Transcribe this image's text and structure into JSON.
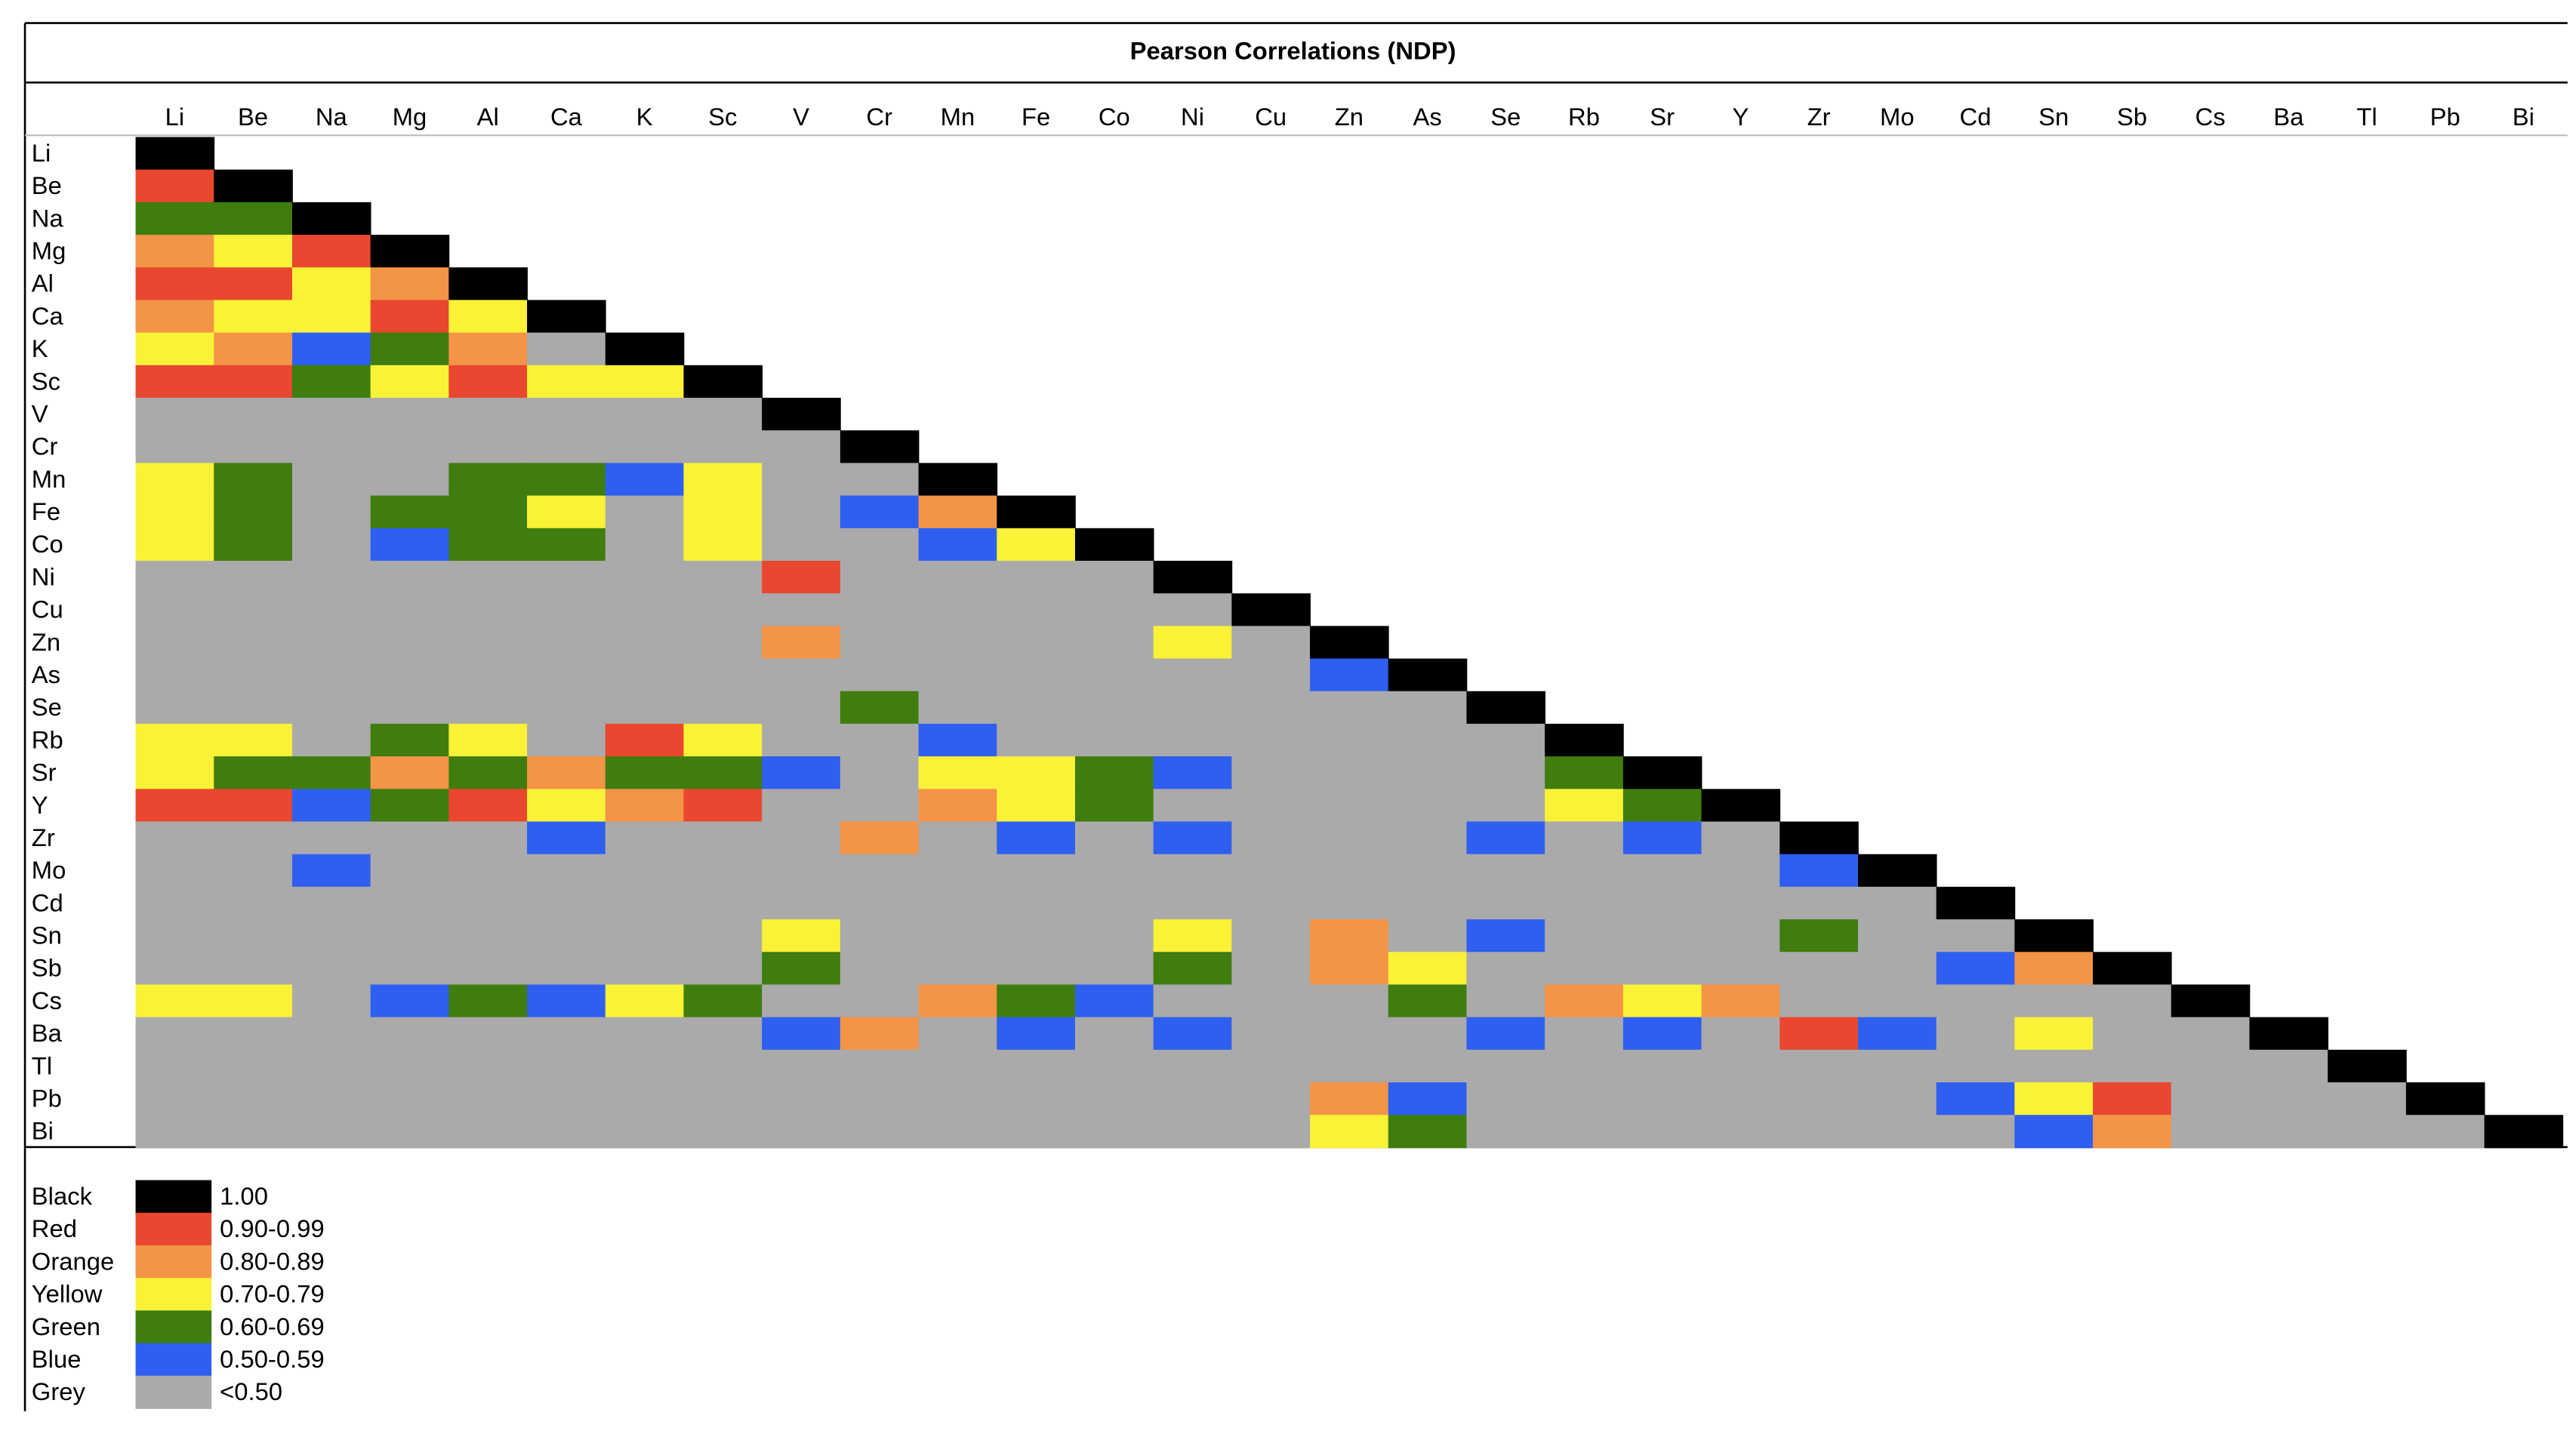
{
  "title": "Pearson Correlations (NDP)",
  "elements": [
    "Li",
    "Be",
    "Na",
    "Mg",
    "Al",
    "Ca",
    "K",
    "Sc",
    "V",
    "Cr",
    "Mn",
    "Fe",
    "Co",
    "Ni",
    "Cu",
    "Zn",
    "As",
    "Se",
    "Rb",
    "Sr",
    "Y",
    "Zr",
    "Mo",
    "Cd",
    "Sn",
    "Sb",
    "Cs",
    "Ba",
    "Tl",
    "Pb",
    "Bi"
  ],
  "matrix": [
    [
      "Black"
    ],
    [
      "Red",
      "Black"
    ],
    [
      "Green",
      "Green",
      "Black"
    ],
    [
      "Orange",
      "Yellow",
      "Red",
      "Black"
    ],
    [
      "Red",
      "Red",
      "Yellow",
      "Orange",
      "Black"
    ],
    [
      "Orange",
      "Yellow",
      "Yellow",
      "Red",
      "Yellow",
      "Black"
    ],
    [
      "Yellow",
      "Orange",
      "Blue",
      "Green",
      "Orange",
      "Grey",
      "Black"
    ],
    [
      "Red",
      "Red",
      "Green",
      "Yellow",
      "Red",
      "Yellow",
      "Yellow",
      "Black"
    ],
    [
      "Grey",
      "Grey",
      "Grey",
      "Grey",
      "Grey",
      "Grey",
      "Grey",
      "Grey",
      "Black"
    ],
    [
      "Grey",
      "Grey",
      "Grey",
      "Grey",
      "Grey",
      "Grey",
      "Grey",
      "Grey",
      "Grey",
      "Black"
    ],
    [
      "Yellow",
      "Green",
      "Grey",
      "Grey",
      "Green",
      "Green",
      "Blue",
      "Yellow",
      "Grey",
      "Grey",
      "Black"
    ],
    [
      "Yellow",
      "Green",
      "Grey",
      "Green",
      "Green",
      "Yellow",
      "Grey",
      "Yellow",
      "Grey",
      "Blue",
      "Orange",
      "Black"
    ],
    [
      "Yellow",
      "Green",
      "Grey",
      "Blue",
      "Green",
      "Green",
      "Grey",
      "Yellow",
      "Grey",
      "Grey",
      "Blue",
      "Yellow",
      "Black"
    ],
    [
      "Grey",
      "Grey",
      "Grey",
      "Grey",
      "Grey",
      "Grey",
      "Grey",
      "Grey",
      "Red",
      "Grey",
      "Grey",
      "Grey",
      "Grey",
      "Black"
    ],
    [
      "Grey",
      "Grey",
      "Grey",
      "Grey",
      "Grey",
      "Grey",
      "Grey",
      "Grey",
      "Grey",
      "Grey",
      "Grey",
      "Grey",
      "Grey",
      "Grey",
      "Black"
    ],
    [
      "Grey",
      "Grey",
      "Grey",
      "Grey",
      "Grey",
      "Grey",
      "Grey",
      "Grey",
      "Orange",
      "Grey",
      "Grey",
      "Grey",
      "Grey",
      "Yellow",
      "Grey",
      "Black"
    ],
    [
      "Grey",
      "Grey",
      "Grey",
      "Grey",
      "Grey",
      "Grey",
      "Grey",
      "Grey",
      "Grey",
      "Grey",
      "Grey",
      "Grey",
      "Grey",
      "Grey",
      "Grey",
      "Blue",
      "Black"
    ],
    [
      "Grey",
      "Grey",
      "Grey",
      "Grey",
      "Grey",
      "Grey",
      "Grey",
      "Grey",
      "Grey",
      "Green",
      "Grey",
      "Grey",
      "Grey",
      "Grey",
      "Grey",
      "Grey",
      "Grey",
      "Black"
    ],
    [
      "Yellow",
      "Yellow",
      "Grey",
      "Green",
      "Yellow",
      "Grey",
      "Red",
      "Yellow",
      "Grey",
      "Grey",
      "Blue",
      "Grey",
      "Grey",
      "Grey",
      "Grey",
      "Grey",
      "Grey",
      "Grey",
      "Black"
    ],
    [
      "Yellow",
      "Green",
      "Green",
      "Orange",
      "Green",
      "Orange",
      "Green",
      "Green",
      "Blue",
      "Grey",
      "Yellow",
      "Yellow",
      "Green",
      "Blue",
      "Grey",
      "Grey",
      "Grey",
      "Grey",
      "Green",
      "Black"
    ],
    [
      "Red",
      "Red",
      "Blue",
      "Green",
      "Red",
      "Yellow",
      "Orange",
      "Red",
      "Grey",
      "Grey",
      "Orange",
      "Yellow",
      "Green",
      "Grey",
      "Grey",
      "Grey",
      "Grey",
      "Grey",
      "Yellow",
      "Green",
      "Black"
    ],
    [
      "Grey",
      "Grey",
      "Grey",
      "Grey",
      "Grey",
      "Blue",
      "Grey",
      "Grey",
      "Grey",
      "Orange",
      "Grey",
      "Blue",
      "Grey",
      "Blue",
      "Grey",
      "Grey",
      "Grey",
      "Blue",
      "Grey",
      "Blue",
      "Grey",
      "Black"
    ],
    [
      "Grey",
      "Grey",
      "Blue",
      "Grey",
      "Grey",
      "Grey",
      "Grey",
      "Grey",
      "Grey",
      "Grey",
      "Grey",
      "Grey",
      "Grey",
      "Grey",
      "Grey",
      "Grey",
      "Grey",
      "Grey",
      "Grey",
      "Grey",
      "Grey",
      "Blue",
      "Black"
    ],
    [
      "Grey",
      "Grey",
      "Grey",
      "Grey",
      "Grey",
      "Grey",
      "Grey",
      "Grey",
      "Grey",
      "Grey",
      "Grey",
      "Grey",
      "Grey",
      "Grey",
      "Grey",
      "Grey",
      "Grey",
      "Grey",
      "Grey",
      "Grey",
      "Grey",
      "Grey",
      "Grey",
      "Black"
    ],
    [
      "Grey",
      "Grey",
      "Grey",
      "Grey",
      "Grey",
      "Grey",
      "Grey",
      "Grey",
      "Yellow",
      "Grey",
      "Grey",
      "Grey",
      "Grey",
      "Yellow",
      "Grey",
      "Orange",
      "Grey",
      "Blue",
      "Grey",
      "Grey",
      "Grey",
      "Green",
      "Grey",
      "Grey",
      "Black"
    ],
    [
      "Grey",
      "Grey",
      "Grey",
      "Grey",
      "Grey",
      "Grey",
      "Grey",
      "Grey",
      "Green",
      "Grey",
      "Grey",
      "Grey",
      "Grey",
      "Green",
      "Grey",
      "Orange",
      "Yellow",
      "Grey",
      "Grey",
      "Grey",
      "Grey",
      "Grey",
      "Grey",
      "Blue",
      "Orange",
      "Black"
    ],
    [
      "Yellow",
      "Yellow",
      "Grey",
      "Blue",
      "Green",
      "Blue",
      "Yellow",
      "Green",
      "Grey",
      "Grey",
      "Orange",
      "Green",
      "Blue",
      "Grey",
      "Grey",
      "Grey",
      "Green",
      "Grey",
      "Orange",
      "Yellow",
      "Orange",
      "Grey",
      "Grey",
      "Grey",
      "Grey",
      "Grey",
      "Black"
    ],
    [
      "Grey",
      "Grey",
      "Grey",
      "Grey",
      "Grey",
      "Grey",
      "Grey",
      "Grey",
      "Blue",
      "Orange",
      "Grey",
      "Blue",
      "Grey",
      "Blue",
      "Grey",
      "Grey",
      "Grey",
      "Blue",
      "Grey",
      "Blue",
      "Grey",
      "Red",
      "Blue",
      "Grey",
      "Yellow",
      "Grey",
      "Grey",
      "Black"
    ],
    [
      "Grey",
      "Grey",
      "Grey",
      "Grey",
      "Grey",
      "Grey",
      "Grey",
      "Grey",
      "Grey",
      "Grey",
      "Grey",
      "Grey",
      "Grey",
      "Grey",
      "Grey",
      "Grey",
      "Grey",
      "Grey",
      "Grey",
      "Grey",
      "Grey",
      "Grey",
      "Grey",
      "Grey",
      "Grey",
      "Grey",
      "Grey",
      "Grey",
      "Black"
    ],
    [
      "Grey",
      "Grey",
      "Grey",
      "Grey",
      "Grey",
      "Grey",
      "Grey",
      "Grey",
      "Grey",
      "Grey",
      "Grey",
      "Grey",
      "Grey",
      "Grey",
      "Grey",
      "Orange",
      "Blue",
      "Grey",
      "Grey",
      "Grey",
      "Grey",
      "Grey",
      "Grey",
      "Blue",
      "Yellow",
      "Red",
      "Grey",
      "Grey",
      "Grey",
      "Black"
    ],
    [
      "Grey",
      "Grey",
      "Grey",
      "Grey",
      "Grey",
      "Grey",
      "Grey",
      "Grey",
      "Grey",
      "Grey",
      "Grey",
      "Grey",
      "Grey",
      "Grey",
      "Grey",
      "Yellow",
      "Green",
      "Grey",
      "Grey",
      "Grey",
      "Grey",
      "Grey",
      "Grey",
      "Grey",
      "Blue",
      "Orange",
      "Grey",
      "Grey",
      "Grey",
      "Grey",
      "Black"
    ]
  ],
  "legend": [
    {
      "name": "Black",
      "color": "#000000",
      "label": "1.00"
    },
    {
      "name": "Red",
      "color": "#e9472f",
      "label": "0.90-0.99"
    },
    {
      "name": "Orange",
      "color": "#f39446",
      "label": "0.80-0.89"
    },
    {
      "name": "Yellow",
      "color": "#f9f237",
      "label": "0.70-0.79"
    },
    {
      "name": "Green",
      "color": "#3f7d0e",
      "label": "0.60-0.69"
    },
    {
      "name": "Blue",
      "color": "#2f5ff1",
      "label": "0.50-0.59"
    },
    {
      "name": "Grey",
      "color": "#aaaaaa",
      "label": "<0.50"
    }
  ]
}
